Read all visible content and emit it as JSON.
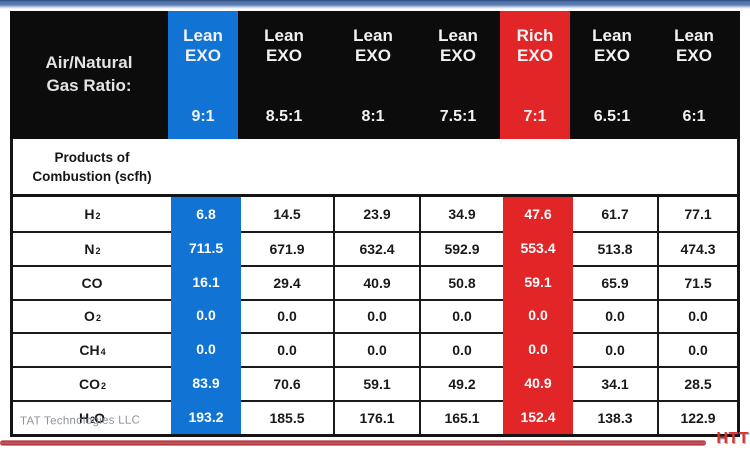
{
  "header": {
    "title_line1": "Air/Natural",
    "title_line2": "Gas Ratio:",
    "columns": [
      {
        "type_line1": "Lean",
        "type_line2": "EXO",
        "ratio": "9:1",
        "highlight": "blue"
      },
      {
        "type_line1": "Lean",
        "type_line2": "EXO",
        "ratio": "8.5:1",
        "highlight": null
      },
      {
        "type_line1": "Lean",
        "type_line2": "EXO",
        "ratio": "8:1",
        "highlight": null
      },
      {
        "type_line1": "Lean",
        "type_line2": "EXO",
        "ratio": "7.5:1",
        "highlight": null
      },
      {
        "type_line1": "Rich",
        "type_line2": "EXO",
        "ratio": "7:1",
        "highlight": "red"
      },
      {
        "type_line1": "Lean",
        "type_line2": "EXO",
        "ratio": "6.5:1",
        "highlight": null
      },
      {
        "type_line1": "Lean",
        "type_line2": "EXO",
        "ratio": "6:1",
        "highlight": null
      }
    ]
  },
  "section": {
    "label_line1": "Products of",
    "label_line2": "Combustion (scfh)"
  },
  "table": {
    "rows": [
      {
        "label_pre": "H",
        "label_sub": "2",
        "label_post": "",
        "values": [
          "6.8",
          "14.5",
          "23.9",
          "34.9",
          "47.6",
          "61.7",
          "77.1"
        ]
      },
      {
        "label_pre": "N",
        "label_sub": "2",
        "label_post": "",
        "values": [
          "711.5",
          "671.9",
          "632.4",
          "592.9",
          "553.4",
          "513.8",
          "474.3"
        ]
      },
      {
        "label_pre": "CO",
        "label_sub": "",
        "label_post": "",
        "values": [
          "16.1",
          "29.4",
          "40.9",
          "50.8",
          "59.1",
          "65.9",
          "71.5"
        ]
      },
      {
        "label_pre": "O",
        "label_sub": "2",
        "label_post": "",
        "values": [
          "0.0",
          "0.0",
          "0.0",
          "0.0",
          "0.0",
          "0.0",
          "0.0"
        ]
      },
      {
        "label_pre": "CH",
        "label_sub": "4",
        "label_post": "",
        "values": [
          "0.0",
          "0.0",
          "0.0",
          "0.0",
          "0.0",
          "0.0",
          "0.0"
        ]
      },
      {
        "label_pre": "CO",
        "label_sub": "2",
        "label_post": "",
        "values": [
          "83.9",
          "70.6",
          "59.1",
          "49.2",
          "40.9",
          "34.1",
          "28.5"
        ]
      },
      {
        "label_pre": "H",
        "label_sub": "2",
        "label_post": "O",
        "values": [
          "193.2",
          "185.5",
          "176.1",
          "165.1",
          "152.4",
          "138.3",
          "122.9"
        ]
      }
    ]
  },
  "footer": {
    "watermark": "TAT Technologies LLC",
    "logo": "HTT"
  },
  "colors": {
    "blue_highlight": "#1173d4",
    "red_highlight": "#e22527",
    "top_bar": "#4d71a9",
    "divider_red": "#ab2b34",
    "header_black": "#0c0c0c"
  }
}
